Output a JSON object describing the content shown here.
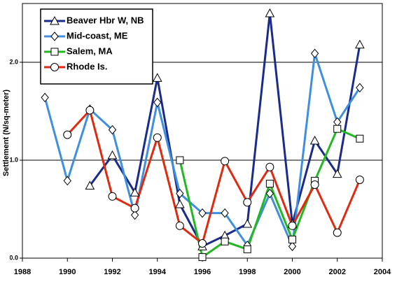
{
  "chart_data": {
    "type": "line",
    "y_label": "Settlement (N/sq-meter)",
    "x": [
      1989,
      1990,
      1991,
      1992,
      1993,
      1994,
      1995,
      1996,
      1997,
      1998,
      1999,
      2000,
      2001,
      2002,
      2003
    ],
    "series": [
      {
        "name": "Beaver Hbr W, NB",
        "color": "#1a2b8c",
        "marker": "triangle",
        "values": [
          null,
          null,
          0.74,
          1.05,
          0.67,
          1.84,
          0.55,
          0.12,
          0.23,
          0.35,
          2.5,
          0.35,
          1.2,
          0.86,
          2.18
        ]
      },
      {
        "name": "Mid-coast, ME",
        "color": "#3f8fe0",
        "marker": "diamond",
        "values": [
          1.64,
          0.79,
          1.52,
          1.31,
          0.44,
          1.59,
          0.66,
          0.46,
          0.46,
          0.13,
          0.66,
          0.12,
          2.09,
          1.39,
          1.74
        ]
      },
      {
        "name": "Salem, MA",
        "color": "#22b822",
        "marker": "square",
        "values": [
          null,
          null,
          null,
          null,
          null,
          null,
          1.0,
          0.01,
          0.17,
          0.09,
          0.76,
          0.19,
          0.79,
          1.32,
          1.22
        ]
      },
      {
        "name": "Rhode Is.",
        "color": "#e02a10",
        "marker": "circle",
        "values": [
          null,
          1.26,
          1.51,
          0.63,
          0.51,
          1.23,
          0.33,
          0.15,
          0.99,
          0.57,
          0.93,
          0.33,
          0.75,
          0.26,
          0.8
        ]
      }
    ],
    "xlim": [
      1988,
      2004
    ],
    "xticks": [
      1988,
      1990,
      1992,
      1994,
      1996,
      1998,
      2000,
      2002,
      2004
    ],
    "ylim": [
      0,
      2.6
    ],
    "yticks": [
      {
        "value": 0,
        "label": "0.0"
      },
      {
        "value": 1,
        "label": "1.0"
      },
      {
        "value": 2,
        "label": "2.0"
      }
    ],
    "grid": true,
    "legend": "upper-left"
  }
}
